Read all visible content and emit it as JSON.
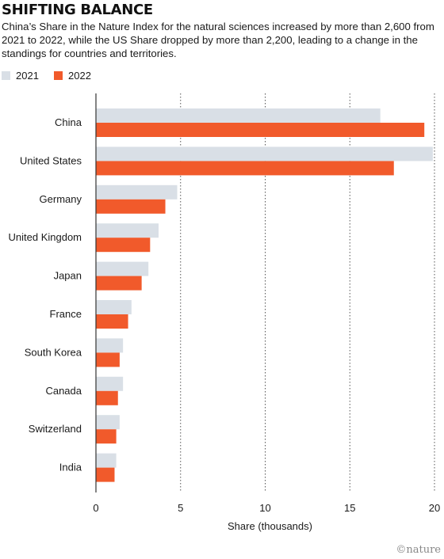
{
  "title": "SHIFTING BALANCE",
  "subtitle": "China’s Share in the Nature Index for the natural sciences increased by more than 2,600 from 2021 to 2022, while the US Share dropped by more than 2,200, leading to a change in the standings for countries and territories.",
  "watermark": "©nature",
  "colors": {
    "2021": "#d9dfe6",
    "2022": "#f15a2b"
  },
  "chart_data": {
    "type": "bar",
    "orientation": "horizontal",
    "categories": [
      "China",
      "United States",
      "Germany",
      "United Kingdom",
      "Japan",
      "France",
      "South Korea",
      "Canada",
      "Switzerland",
      "India"
    ],
    "series": [
      {
        "name": "2021",
        "values": [
          16.8,
          19.9,
          4.8,
          3.7,
          3.1,
          2.1,
          1.6,
          1.6,
          1.4,
          1.2
        ]
      },
      {
        "name": "2022",
        "values": [
          19.4,
          17.6,
          4.1,
          3.2,
          2.7,
          1.9,
          1.4,
          1.3,
          1.2,
          1.1
        ]
      }
    ],
    "xlabel": "Share (thousands)",
    "xlim": [
      0,
      20
    ],
    "xticks": [
      "0",
      "5",
      "10",
      "15",
      "20"
    ],
    "grid": "vertical dotted",
    "legend": "top-left"
  }
}
